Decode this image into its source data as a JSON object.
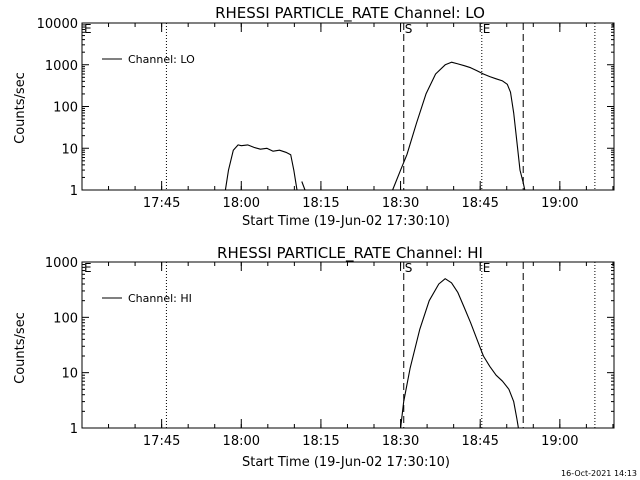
{
  "footer": {
    "timestamp": "16-Oct-2021 14:13"
  },
  "chart_data": [
    {
      "type": "line",
      "title": "RHESSI PARTICLE_RATE Channel: LO",
      "xlabel": "Start Time (19-Jun-02 17:30:10)",
      "ylabel": "Counts/sec",
      "yscale": "log",
      "xlim": [
        17.5,
        19.17
      ],
      "ylim": [
        1,
        10000
      ],
      "y_ticks": [
        {
          "value": 1,
          "label": "1"
        },
        {
          "value": 10,
          "label": "10"
        },
        {
          "value": 100,
          "label": "100"
        },
        {
          "value": 1000,
          "label": "1000"
        },
        {
          "value": 10000,
          "label": "10000"
        }
      ],
      "x_ticks": [
        {
          "value": 17.75,
          "label": "17:45"
        },
        {
          "value": 18.0,
          "label": "18:00"
        },
        {
          "value": 18.25,
          "label": "18:15"
        },
        {
          "value": 18.5,
          "label": "18:30"
        },
        {
          "value": 18.75,
          "label": "18:45"
        },
        {
          "value": 19.0,
          "label": "19:00"
        }
      ],
      "legend": {
        "label": "Channel: LO",
        "position": "top-left"
      },
      "markers": [
        {
          "label": "E",
          "x": 17.503,
          "style": "none"
        },
        {
          "label": "",
          "x": 17.765,
          "style": "dotted"
        },
        {
          "label": "S",
          "x": 18.51,
          "style": "dashed"
        },
        {
          "label": "E",
          "x": 18.755,
          "style": "dotted"
        },
        {
          "label": "",
          "x": 18.885,
          "style": "dashed"
        },
        {
          "label": "",
          "x": 19.11,
          "style": "dotted"
        }
      ],
      "series": [
        {
          "name": "Channel: LO",
          "segments": [
            [
              [
                17.95,
                1
              ],
              [
                17.96,
                3
              ],
              [
                17.975,
                9
              ],
              [
                17.99,
                12
              ],
              [
                18.0,
                11.5
              ],
              [
                18.02,
                12
              ],
              [
                18.04,
                10.5
              ],
              [
                18.06,
                9.5
              ],
              [
                18.08,
                10
              ],
              [
                18.1,
                8.5
              ],
              [
                18.12,
                9
              ],
              [
                18.14,
                8
              ],
              [
                18.155,
                7
              ],
              [
                18.165,
                3
              ],
              [
                18.175,
                1
              ]
            ],
            [
              [
                18.19,
                1.6
              ],
              [
                18.2,
                1
              ]
            ],
            [
              [
                18.475,
                1
              ],
              [
                18.5,
                3
              ],
              [
                18.52,
                7
              ],
              [
                18.55,
                40
              ],
              [
                18.58,
                200
              ],
              [
                18.61,
                600
              ],
              [
                18.64,
                1000
              ],
              [
                18.66,
                1150
              ],
              [
                18.68,
                1050
              ],
              [
                18.7,
                950
              ],
              [
                18.72,
                850
              ],
              [
                18.74,
                720
              ],
              [
                18.76,
                600
              ],
              [
                18.78,
                520
              ],
              [
                18.8,
                460
              ],
              [
                18.82,
                410
              ],
              [
                18.835,
                340
              ],
              [
                18.845,
                220
              ],
              [
                18.855,
                70
              ],
              [
                18.865,
                15
              ],
              [
                18.875,
                3
              ],
              [
                18.885,
                1.5
              ],
              [
                18.89,
                1
              ]
            ]
          ]
        }
      ]
    },
    {
      "type": "line",
      "title": "RHESSI PARTICLE_RATE Channel: HI",
      "xlabel": "Start Time (19-Jun-02 17:30:10)",
      "ylabel": "Counts/sec",
      "yscale": "log",
      "xlim": [
        17.5,
        19.17
      ],
      "ylim": [
        1,
        1000
      ],
      "y_ticks": [
        {
          "value": 1,
          "label": "1"
        },
        {
          "value": 10,
          "label": "10"
        },
        {
          "value": 100,
          "label": "100"
        },
        {
          "value": 1000,
          "label": "1000"
        }
      ],
      "x_ticks": [
        {
          "value": 17.75,
          "label": "17:45"
        },
        {
          "value": 18.0,
          "label": "18:00"
        },
        {
          "value": 18.25,
          "label": "18:15"
        },
        {
          "value": 18.5,
          "label": "18:30"
        },
        {
          "value": 18.75,
          "label": "18:45"
        },
        {
          "value": 19.0,
          "label": "19:00"
        }
      ],
      "legend": {
        "label": "Channel: HI",
        "position": "top-left"
      },
      "markers": [
        {
          "label": "E",
          "x": 17.503,
          "style": "none"
        },
        {
          "label": "",
          "x": 17.765,
          "style": "dotted"
        },
        {
          "label": "S",
          "x": 18.51,
          "style": "dashed"
        },
        {
          "label": "E",
          "x": 18.755,
          "style": "dotted"
        },
        {
          "label": "",
          "x": 18.885,
          "style": "dashed"
        },
        {
          "label": "",
          "x": 19.11,
          "style": "dotted"
        }
      ],
      "series": [
        {
          "name": "Channel: HI",
          "segments": [
            [
              [
                18.5,
                1
              ],
              [
                18.51,
                3
              ],
              [
                18.53,
                12
              ],
              [
                18.56,
                60
              ],
              [
                18.59,
                200
              ],
              [
                18.62,
                400
              ],
              [
                18.64,
                500
              ],
              [
                18.66,
                420
              ],
              [
                18.68,
                280
              ],
              [
                18.7,
                150
              ],
              [
                18.72,
                80
              ],
              [
                18.74,
                40
              ],
              [
                18.76,
                20
              ],
              [
                18.78,
                13
              ],
              [
                18.8,
                9
              ],
              [
                18.82,
                7
              ],
              [
                18.84,
                5
              ],
              [
                18.855,
                3
              ],
              [
                18.865,
                1.5
              ],
              [
                18.87,
                1
              ]
            ]
          ]
        }
      ]
    }
  ]
}
